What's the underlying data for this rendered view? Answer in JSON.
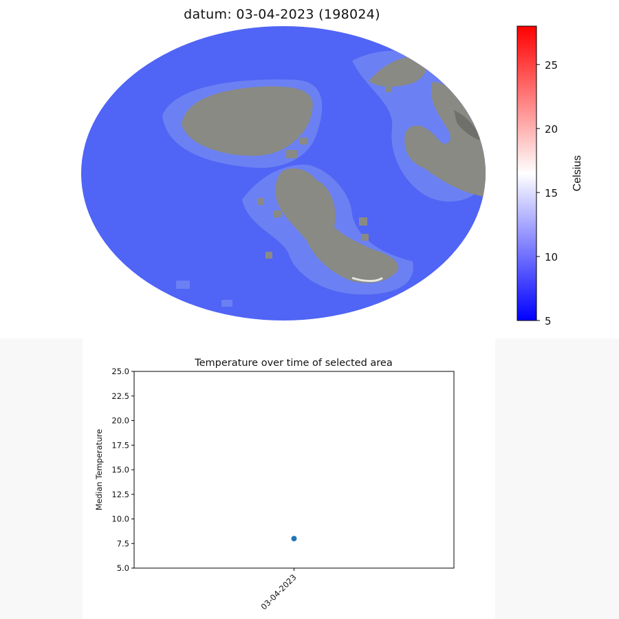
{
  "map": {
    "title": "datum: 03-04-2023 (198024)",
    "colorbar": {
      "label": "Celsius",
      "range": [
        5,
        28
      ],
      "ticks": [
        "5",
        "10",
        "15",
        "20",
        "25"
      ],
      "colors": [
        "#0000ff",
        "#ffffff",
        "#ff0000"
      ]
    },
    "colors": {
      "water": "#5064f5",
      "shallow": "#6b80f2",
      "land": "#8a8a84"
    }
  },
  "chart_data": {
    "type": "scatter",
    "title": "Temperature over time of selected area",
    "xlabel": "",
    "ylabel": "Median Temperature",
    "categories": [
      "03-04-2023"
    ],
    "series": [
      {
        "values": [
          8.0
        ],
        "color": "#1f77b4"
      }
    ],
    "ylim": [
      5.0,
      25.0
    ],
    "yticks": [
      "5.0",
      "7.5",
      "10.0",
      "12.5",
      "15.0",
      "17.5",
      "20.0",
      "22.5",
      "25.0"
    ],
    "grid": false
  }
}
